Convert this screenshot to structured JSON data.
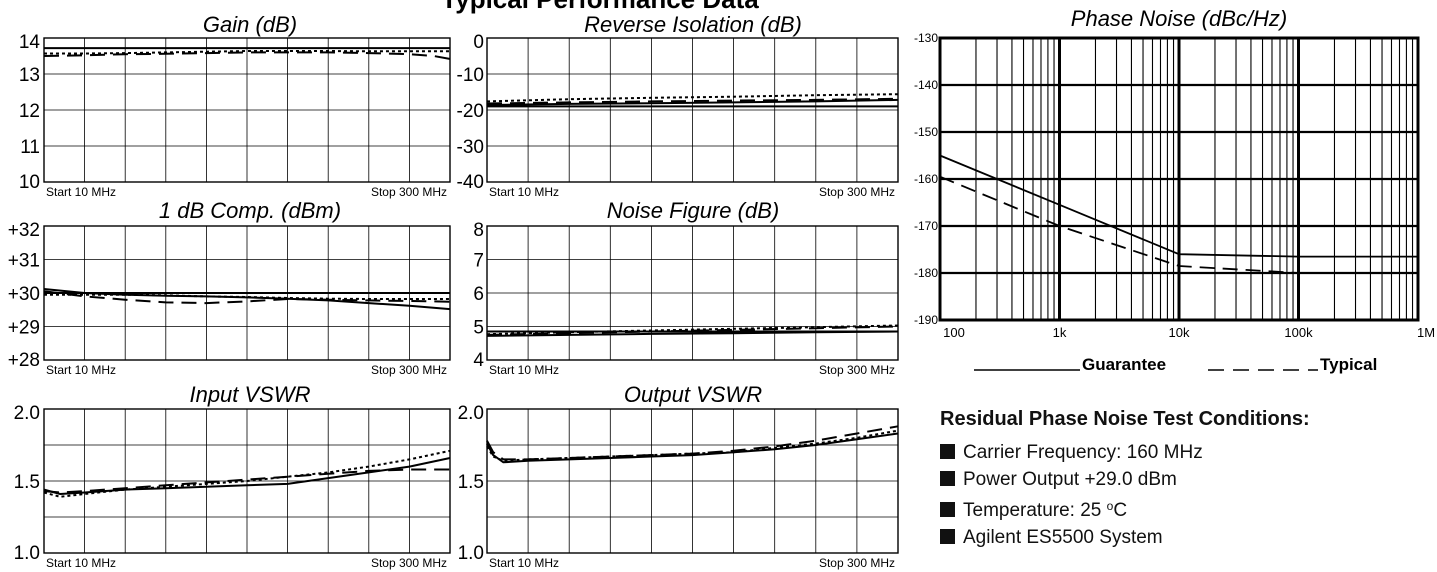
{
  "page": {
    "title": "Typical Performance Data"
  },
  "legend": {
    "guarantee_label": "Guarantee",
    "typical_label": "Typical"
  },
  "test_conditions": {
    "title": "Residual Phase Noise Test Conditions:",
    "items": [
      {
        "text": "Carrier Frequency: 160 MHz"
      },
      {
        "text": "Power Output +29.0 dBm"
      },
      {
        "text_before": "Temperature: 25 ",
        "superscript": "o",
        "text_after": "C"
      },
      {
        "text": "Agilent ES5500 System"
      }
    ]
  },
  "chart_data": [
    {
      "id": "gain",
      "type": "line",
      "title": "Gain (dB)",
      "xlabel": "",
      "ylabel": "",
      "xlim": [
        0,
        10
      ],
      "ylim": [
        10,
        14
      ],
      "y_ticks": [
        10,
        11,
        12,
        13,
        14
      ],
      "y_tick_labels": [
        "10",
        "11",
        "12",
        "13",
        "14"
      ],
      "x_start_label": "Start 10 MHz",
      "x_stop_label": "Stop 300 MHz",
      "grid": true,
      "series": [
        {
          "style": "solid",
          "x": [
            0,
            5,
            10
          ],
          "y": [
            13.72,
            13.72,
            13.72
          ]
        },
        {
          "style": "dotted",
          "x": [
            0,
            1,
            2,
            3,
            4,
            5,
            6,
            7,
            8,
            9,
            10
          ],
          "y": [
            13.57,
            13.57,
            13.58,
            13.6,
            13.62,
            13.64,
            13.64,
            13.64,
            13.63,
            13.63,
            13.63
          ]
        },
        {
          "style": "dashed",
          "x": [
            0,
            1,
            2,
            3,
            4,
            5,
            6,
            7,
            8,
            9,
            9.6,
            10
          ],
          "y": [
            13.5,
            13.52,
            13.55,
            13.56,
            13.58,
            13.6,
            13.6,
            13.6,
            13.58,
            13.55,
            13.5,
            13.42
          ]
        }
      ]
    },
    {
      "id": "reverse-isolation",
      "type": "line",
      "title": "Reverse Isolation (dB)",
      "xlabel": "",
      "ylabel": "",
      "xlim": [
        0,
        10
      ],
      "ylim": [
        -40,
        0
      ],
      "y_ticks": [
        -40,
        -30,
        -20,
        -10,
        0
      ],
      "y_tick_labels": [
        "-40",
        "-30",
        "-20",
        "-10",
        "0"
      ],
      "x_start_label": "Start 10 MHz",
      "x_stop_label": "Stop 300 MHz",
      "grid": true,
      "series": [
        {
          "style": "solid",
          "x": [
            0,
            10
          ],
          "y": [
            -19.0,
            -19.0
          ]
        },
        {
          "style": "solid",
          "x": [
            0,
            2,
            4,
            6,
            8,
            10
          ],
          "y": [
            -18.6,
            -18.3,
            -18.1,
            -17.9,
            -17.6,
            -17.2
          ]
        },
        {
          "style": "dashed",
          "x": [
            0,
            2,
            4,
            6,
            8,
            10
          ],
          "y": [
            -18.2,
            -17.9,
            -17.6,
            -17.4,
            -17.2,
            -16.9
          ]
        },
        {
          "style": "dotted",
          "x": [
            0,
            2,
            4,
            6,
            8,
            10
          ],
          "y": [
            -17.6,
            -17.0,
            -16.6,
            -16.3,
            -15.9,
            -15.6
          ]
        }
      ]
    },
    {
      "id": "comp-1db",
      "type": "line",
      "title": "1 dB Comp. (dBm)",
      "xlabel": "",
      "ylabel": "",
      "xlim": [
        0,
        10
      ],
      "ylim": [
        28,
        32
      ],
      "y_ticks": [
        28,
        29,
        30,
        31,
        32
      ],
      "y_tick_labels": [
        "+28",
        "+29",
        "+30",
        "+31",
        "+32"
      ],
      "x_start_label": "Start 10 MHz",
      "x_stop_label": "Stop 300 MHz",
      "grid": true,
      "series": [
        {
          "style": "solid",
          "x": [
            0,
            10
          ],
          "y": [
            30.0,
            30.0
          ]
        },
        {
          "style": "solid",
          "x": [
            0,
            1,
            2,
            3,
            4,
            5,
            6,
            7,
            8,
            9,
            10
          ],
          "y": [
            30.12,
            30.0,
            29.95,
            29.92,
            29.9,
            29.87,
            29.83,
            29.78,
            29.7,
            29.62,
            29.52
          ]
        },
        {
          "style": "dotted",
          "x": [
            0,
            1,
            2,
            3,
            4,
            5,
            6,
            7,
            8,
            9,
            10
          ],
          "y": [
            29.95,
            29.95,
            29.95,
            29.93,
            29.9,
            29.88,
            29.85,
            29.83,
            29.82,
            29.82,
            29.82
          ]
        },
        {
          "style": "dashed",
          "x": [
            0,
            1,
            2,
            3,
            4,
            5,
            6,
            7,
            8,
            9,
            10
          ],
          "y": [
            30.05,
            29.9,
            29.8,
            29.72,
            29.7,
            29.75,
            29.82,
            29.8,
            29.78,
            29.76,
            29.74
          ]
        }
      ]
    },
    {
      "id": "noise-figure",
      "type": "line",
      "title": "Noise Figure (dB)",
      "xlabel": "",
      "ylabel": "",
      "xlim": [
        0,
        10
      ],
      "ylim": [
        4,
        8
      ],
      "y_ticks": [
        4,
        5,
        6,
        7,
        8
      ],
      "y_tick_labels": [
        "4",
        "5",
        "6",
        "7",
        "8"
      ],
      "x_start_label": "Start 10  MHz",
      "x_stop_label": "Stop  300 MHz",
      "grid": true,
      "series": [
        {
          "style": "solid",
          "x": [
            0,
            10
          ],
          "y": [
            4.85,
            4.85
          ]
        },
        {
          "style": "solid",
          "x": [
            0,
            2,
            4,
            6,
            8,
            10
          ],
          "y": [
            4.72,
            4.75,
            4.78,
            4.8,
            4.83,
            4.85
          ]
        },
        {
          "style": "dashed",
          "x": [
            0,
            2,
            4,
            6,
            8,
            10
          ],
          "y": [
            4.75,
            4.8,
            4.85,
            4.9,
            4.95,
            5.0
          ]
        },
        {
          "style": "dotted",
          "x": [
            0,
            2,
            4,
            6,
            8,
            10
          ],
          "y": [
            4.77,
            4.83,
            4.88,
            4.93,
            4.98,
            5.03
          ]
        }
      ]
    },
    {
      "id": "input-vswr",
      "type": "line",
      "title": "Input VSWR",
      "xlabel": "",
      "ylabel": "",
      "xlim": [
        0,
        10
      ],
      "ylim": [
        1.0,
        2.0
      ],
      "y_ticks": [
        1.0,
        1.5,
        2.0
      ],
      "y_tick_labels": [
        "1.0",
        "1.5",
        "2.0"
      ],
      "x_start_label": "Start 10 MHz",
      "x_stop_label": "Stop  300 MHz",
      "grid": true,
      "series": [
        {
          "style": "solid",
          "x": [
            0,
            0.4,
            1,
            2,
            3,
            4,
            5,
            6,
            7,
            8,
            9,
            10
          ],
          "y": [
            1.44,
            1.41,
            1.42,
            1.44,
            1.45,
            1.46,
            1.47,
            1.48,
            1.52,
            1.56,
            1.6,
            1.66
          ]
        },
        {
          "style": "dotted",
          "x": [
            0,
            0.4,
            1,
            2,
            3,
            4,
            5,
            6,
            7,
            8,
            9,
            10
          ],
          "y": [
            1.42,
            1.39,
            1.41,
            1.44,
            1.46,
            1.48,
            1.5,
            1.53,
            1.56,
            1.6,
            1.65,
            1.71
          ]
        },
        {
          "style": "dashed",
          "x": [
            0,
            0.4,
            1,
            2,
            3,
            4,
            5,
            6,
            7,
            8,
            9,
            10
          ],
          "y": [
            1.43,
            1.42,
            1.43,
            1.45,
            1.47,
            1.49,
            1.51,
            1.53,
            1.55,
            1.57,
            1.58,
            1.58
          ]
        }
      ]
    },
    {
      "id": "output-vswr",
      "type": "line",
      "title": "Output VSWR",
      "xlabel": "",
      "ylabel": "",
      "xlim": [
        0,
        10
      ],
      "ylim": [
        1.0,
        2.0
      ],
      "y_ticks": [
        1.0,
        1.5,
        2.0
      ],
      "y_tick_labels": [
        "1.0",
        "1.5",
        "2.0"
      ],
      "x_start_label": "Start 10  MHz",
      "x_stop_label": "Stop 300 MHz",
      "grid": true,
      "series": [
        {
          "style": "solid",
          "x": [
            0,
            0.15,
            0.4,
            1,
            2,
            3,
            4,
            5,
            6,
            7,
            8,
            9,
            10
          ],
          "y": [
            1.76,
            1.68,
            1.63,
            1.64,
            1.65,
            1.66,
            1.67,
            1.68,
            1.7,
            1.72,
            1.75,
            1.79,
            1.83
          ]
        },
        {
          "style": "dashed",
          "x": [
            0,
            0.15,
            0.4,
            1,
            2,
            3,
            4,
            5,
            6,
            7,
            8,
            9,
            10
          ],
          "y": [
            1.78,
            1.7,
            1.65,
            1.65,
            1.66,
            1.67,
            1.68,
            1.69,
            1.71,
            1.74,
            1.78,
            1.83,
            1.88
          ]
        },
        {
          "style": "dotted",
          "x": [
            0,
            0.15,
            0.4,
            1,
            2,
            3,
            4,
            5,
            6,
            7,
            8,
            9,
            10
          ],
          "y": [
            1.74,
            1.67,
            1.64,
            1.65,
            1.66,
            1.67,
            1.68,
            1.69,
            1.7,
            1.73,
            1.76,
            1.8,
            1.85
          ]
        }
      ]
    },
    {
      "id": "phase-noise",
      "type": "line",
      "title": "Phase Noise (dBc/Hz)",
      "xlabel": "",
      "ylabel": "",
      "x_scale": "log",
      "xlim": [
        100,
        1000000
      ],
      "ylim": [
        -190,
        -130
      ],
      "x_ticks": [
        100,
        1000,
        10000,
        100000,
        1000000
      ],
      "x_tick_labels": [
        "100",
        "1k",
        "10k",
        "100k",
        "1M"
      ],
      "y_ticks": [
        -190,
        -180,
        -170,
        -160,
        -150,
        -140,
        -130
      ],
      "y_tick_labels": [
        "-190",
        "-180",
        "-170",
        "-160",
        "-150",
        "-140",
        "-130"
      ],
      "grid": true,
      "series": [
        {
          "name": "Guarantee",
          "style": "solid",
          "x": [
            100,
            1000,
            10000,
            100000,
            1000000
          ],
          "y": [
            -155,
            -165.5,
            -176,
            -176.5,
            -176.5
          ]
        },
        {
          "name": "Typical",
          "style": "dashed",
          "x": [
            100,
            1000,
            10000,
            100000,
            1000000
          ],
          "y": [
            -159.5,
            -170,
            -178.5,
            -180,
            -180
          ]
        }
      ]
    }
  ]
}
